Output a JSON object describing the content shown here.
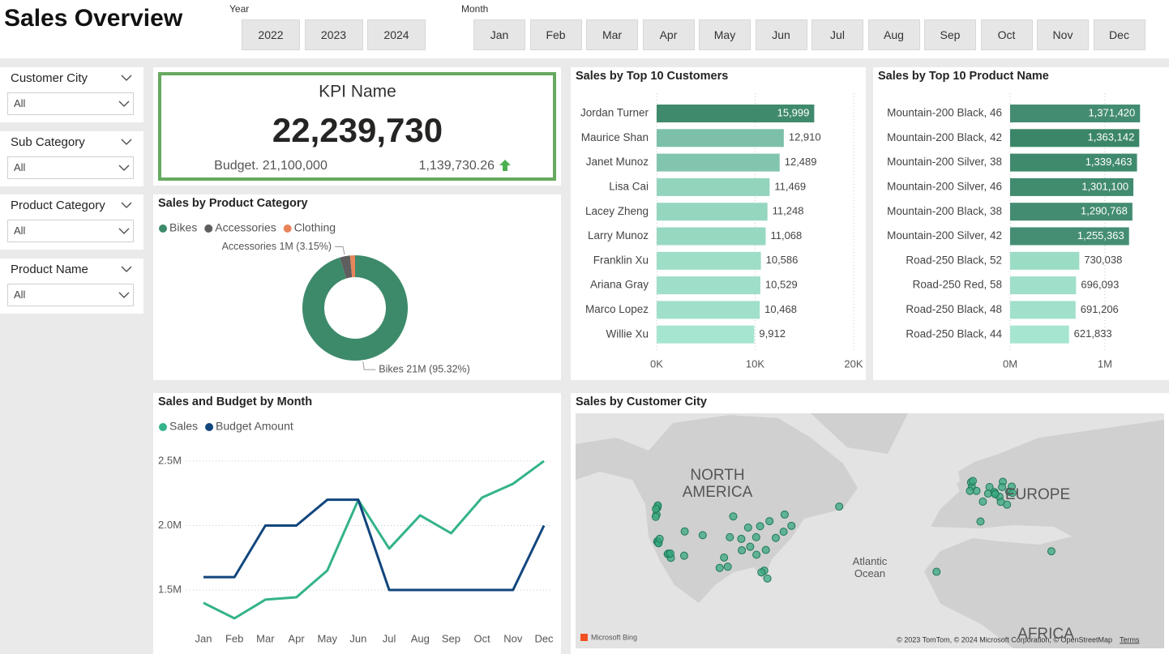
{
  "header": {
    "title": "Sales Overview",
    "year_label": "Year",
    "years": [
      "2022",
      "2023",
      "2024"
    ],
    "month_label": "Month",
    "months": [
      "Jan",
      "Feb",
      "Mar",
      "Apr",
      "May",
      "Jun",
      "Jul",
      "Aug",
      "Sep",
      "Oct",
      "Nov",
      "Dec"
    ]
  },
  "filters": [
    {
      "label": "Customer City",
      "value": "All"
    },
    {
      "label": "Sub Category",
      "value": "All"
    },
    {
      "label": "Product Category",
      "value": "All"
    },
    {
      "label": "Product Name",
      "value": "All"
    }
  ],
  "kpi": {
    "title": "KPI Name",
    "value": "22,239,730",
    "budget": "Budget. 21,100,000",
    "variance": "1,139,730.26"
  },
  "chart_data": [
    {
      "type": "donut",
      "title": "Sales by Product Category",
      "categories": [
        "Bikes",
        "Accessories",
        "Clothing"
      ],
      "values": [
        95.32,
        3.15,
        1.53
      ],
      "value_labels": [
        "Bikes 21M (95.32%)",
        "Accessories 1M (3.15%)",
        null
      ],
      "colors": [
        "#3d8a6b",
        "#5e5e5e",
        "#e8855a"
      ],
      "legend": "top-left"
    },
    {
      "type": "bar",
      "horizontal": true,
      "title": "Sales by Top 10 Customers",
      "categories": [
        "Jordan Turner",
        "Maurice Shan",
        "Janet Munoz",
        "Lisa Cai",
        "Lacey Zheng",
        "Larry Munoz",
        "Franklin Xu",
        "Ariana Gray",
        "Marco Lopez",
        "Willie Xu"
      ],
      "values": [
        15999,
        12910,
        12489,
        11469,
        11248,
        11068,
        10586,
        10529,
        10468,
        9912
      ],
      "value_labels": [
        "15,999",
        "12,910",
        "12,489",
        "11,469",
        "11,248",
        "11,068",
        "10,586",
        "10,529",
        "10,468",
        "9,912"
      ],
      "colors": [
        "#3f8a6c",
        "#7cc0aa",
        "#82c5ae",
        "#93d4bd",
        "#95d6bf",
        "#97d8c1",
        "#9edec7",
        "#9fdec8",
        "#a0dfc9",
        "#a6e5cf"
      ],
      "xlim": [
        0,
        20000
      ],
      "xticks": [
        {
          "value": 0,
          "label": "0K"
        },
        {
          "value": 10000,
          "label": "10K"
        },
        {
          "value": 20000,
          "label": "20K"
        }
      ],
      "grid": true
    },
    {
      "type": "bar",
      "horizontal": true,
      "title": "Sales by Top 10 Product Name",
      "categories": [
        "Mountain-200 Black, 46",
        "Mountain-200 Black, 42",
        "Mountain-200 Silver, 38",
        "Mountain-200 Silver, 46",
        "Mountain-200 Black, 38",
        "Mountain-200 Silver, 42",
        "Road-250 Black, 52",
        "Road-250 Red, 58",
        "Road-250 Black, 48",
        "Road-250 Black, 44"
      ],
      "values": [
        1371420,
        1363142,
        1339463,
        1301100,
        1290768,
        1255363,
        730038,
        696093,
        691206,
        621833
      ],
      "value_labels": [
        "1,371,420",
        "1,363,142",
        "1,339,463",
        "1,301,100",
        "1,290,768",
        "1,255,363",
        "730,038",
        "696,093",
        "691,206",
        "621,833"
      ],
      "colors": [
        "#438c72",
        "#3b8668",
        "#3f8a6d",
        "#418b6f",
        "#438c71",
        "#458e73",
        "#9bdcc5",
        "#a0dfc9",
        "#a1e0ca",
        "#a6e5cf"
      ],
      "xlim": [
        0,
        1600000
      ],
      "xticks": [
        {
          "value": 0,
          "label": "0M"
        },
        {
          "value": 1000000,
          "label": "1M"
        }
      ],
      "grid": true
    },
    {
      "type": "line",
      "title": "Sales and Budget by Month",
      "categories": [
        "Jan",
        "Feb",
        "Mar",
        "Apr",
        "May",
        "Jun",
        "Jul",
        "Aug",
        "Sep",
        "Oct",
        "Nov",
        "Dec"
      ],
      "series": [
        {
          "name": "Sales",
          "color": "#34b38b",
          "values": [
            1400000,
            1280000,
            1425000,
            1443000,
            1651000,
            2198000,
            1821000,
            2079000,
            1940000,
            2217000,
            2324000,
            2500000
          ]
        },
        {
          "name": "Budget Amount",
          "color": "#12467d",
          "values": [
            1600000,
            1600000,
            2000000,
            2000000,
            2200000,
            2200000,
            1500000,
            1500000,
            1500000,
            1500000,
            1500000,
            2000000
          ]
        }
      ],
      "ylim": [
        1250000,
        2550000
      ],
      "yticks": [
        {
          "value": 1500000,
          "label": "1.5M"
        },
        {
          "value": 2000000,
          "label": "2.0M"
        },
        {
          "value": 2500000,
          "label": "2.5M"
        }
      ],
      "grid": true,
      "legend": "top-left"
    },
    {
      "type": "map",
      "title": "Sales by Customer City",
      "labels": [
        "NORTH AMERICA",
        "EUROPE",
        "Atlantic Ocean",
        "AFRICA"
      ],
      "attribution": "© 2023 TomTom, © 2024 Microsoft Corporation, © OpenStreetMap",
      "terms": "Terms",
      "logo": "Microsoft Bing",
      "color": "#3aaa80",
      "lonlim": [
        -153.7,
        71.8
      ],
      "latlim": [
        0,
        66.5
      ],
      "lon": [
        -122.3,
        -122.4,
        -122.2,
        -122.7,
        -123,
        -122.9,
        -122.4,
        -122.0,
        -122.3,
        -121.9,
        -118.2,
        -117.9,
        -118.4,
        -117.2,
        -117.4,
        -121.5,
        -112.1,
        -105,
        -111.9,
        -96.8,
        -95.4,
        -87.6,
        -83,
        -84.4,
        -74,
        -71,
        -77,
        -80.2,
        -79.4,
        -73.6,
        -93.3,
        -94.6,
        -90,
        -81.4,
        -82.5,
        -90.2,
        -86.8,
        -80.8,
        -84.5,
        -98.5,
        -52.7,
        -0.1,
        -1.9,
        -2.2,
        -1.5,
        -2.6,
        2.35,
        1.44,
        13.4,
        10,
        8.7,
        11.6,
        6.96,
        4.9,
        4.35,
        9.2,
        6.8,
        12.4,
        13.7,
        7.1,
        9.7,
        -15.4,
        28.6
      ],
      "lat": [
        47.6,
        47.25,
        47.9,
        45.5,
        44.9,
        47.0,
        37.8,
        37.4,
        37.9,
        37.3,
        34.05,
        33.8,
        33.9,
        32.7,
        34.1,
        38.6,
        33.4,
        39.7,
        40.8,
        32.8,
        29.8,
        41.9,
        42.3,
        33.7,
        40.7,
        42.4,
        38.9,
        25.8,
        43.7,
        45.5,
        45,
        39.1,
        35.1,
        28.5,
        27.9,
        38.6,
        36.2,
        35.2,
        39.1,
        29.4,
        47.6,
        51.5,
        52.5,
        53.5,
        53.8,
        51.5,
        48.86,
        43.6,
        52.5,
        53.6,
        50.1,
        48.1,
        50.9,
        52.4,
        50.85,
        48.8,
        51.2,
        51.3,
        51,
        50.7,
        52.4,
        28.1,
        34.8
      ]
    }
  ]
}
